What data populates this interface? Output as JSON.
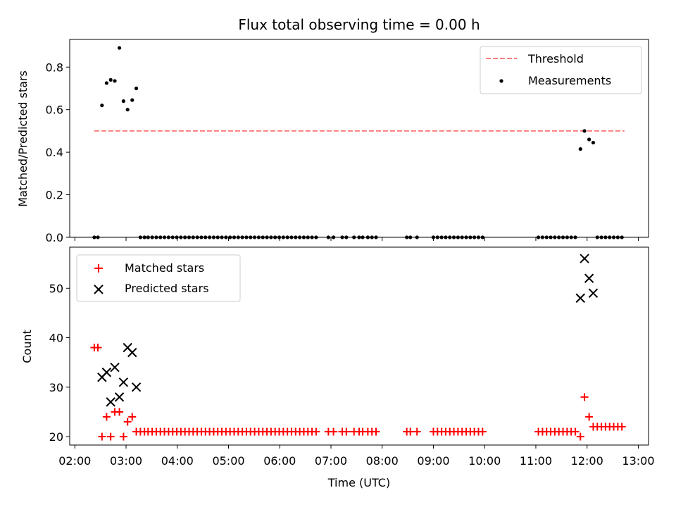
{
  "chart_data": {
    "title": "Flux total observing time = 0.00 h",
    "xlabel": "Time (UTC)",
    "x_tick_labels": [
      "02:00",
      "03:00",
      "04:00",
      "05:00",
      "06:00",
      "07:00",
      "08:00",
      "09:00",
      "10:00",
      "11:00",
      "12:00",
      "13:00"
    ],
    "x_tick_hours": [
      2,
      3,
      4,
      5,
      6,
      7,
      8,
      9,
      10,
      11,
      12,
      13
    ],
    "xlim_hours": [
      1.9,
      13.2
    ],
    "panels": [
      {
        "type": "scatter",
        "ylabel": "Matched/Predicted stars",
        "ylim": [
          0,
          0.93
        ],
        "y_ticks": [
          0.0,
          0.2,
          0.4,
          0.6,
          0.8
        ],
        "y_tick_labels": [
          "0.0",
          "0.2",
          "0.4",
          "0.6",
          "0.8"
        ],
        "legend_position": "upper right",
        "threshold": {
          "name": "Threshold",
          "value": 0.5,
          "x_range_hours": [
            2.38,
            12.73
          ],
          "color": "#ff7f7f"
        },
        "series": [
          {
            "name": "Measurements",
            "color": "#000000",
            "x_hours": [
              2.38,
              2.45,
              2.53,
              2.62,
              2.7,
              2.78,
              2.87,
              2.95,
              3.03,
              3.12,
              3.2,
              3.28,
              3.36,
              3.43,
              3.51,
              3.59,
              3.67,
              3.75,
              3.83,
              3.91,
              3.99,
              4.07,
              4.15,
              4.23,
              4.31,
              4.39,
              4.47,
              4.55,
              4.63,
              4.71,
              4.79,
              4.87,
              4.95,
              5.03,
              5.11,
              5.19,
              5.27,
              5.35,
              5.43,
              5.51,
              5.59,
              5.67,
              5.75,
              5.83,
              5.91,
              5.99,
              6.07,
              6.15,
              6.23,
              6.31,
              6.39,
              6.47,
              6.55,
              6.63,
              6.71,
              6.95,
              7.05,
              7.22,
              7.3,
              7.45,
              7.55,
              7.62,
              7.72,
              7.8,
              7.88,
              8.48,
              8.55,
              8.68,
              9.0,
              9.08,
              9.16,
              9.24,
              9.32,
              9.4,
              9.48,
              9.56,
              9.64,
              9.72,
              9.8,
              9.88,
              9.96,
              11.05,
              11.13,
              11.21,
              11.29,
              11.37,
              11.45,
              11.53,
              11.61,
              11.69,
              11.77,
              11.87,
              11.95,
              12.04,
              12.12,
              12.2,
              12.28,
              12.36,
              12.44,
              12.52,
              12.6,
              12.68
            ],
            "y": [
              0,
              0,
              0.62,
              0.725,
              0.74,
              0.735,
              0.89,
              0.64,
              0.6,
              0.645,
              0.7,
              0,
              0,
              0,
              0,
              0,
              0,
              0,
              0,
              0,
              0,
              0,
              0,
              0,
              0,
              0,
              0,
              0,
              0,
              0,
              0,
              0,
              0,
              0,
              0,
              0,
              0,
              0,
              0,
              0,
              0,
              0,
              0,
              0,
              0,
              0,
              0,
              0,
              0,
              0,
              0,
              0,
              0,
              0,
              0,
              0,
              0,
              0,
              0,
              0,
              0,
              0,
              0,
              0,
              0,
              0,
              0,
              0,
              0,
              0,
              0,
              0,
              0,
              0,
              0,
              0,
              0,
              0,
              0,
              0,
              0,
              0,
              0,
              0,
              0,
              0,
              0,
              0,
              0,
              0,
              0,
              0.415,
              0.5,
              0.46,
              0.445,
              0,
              0,
              0,
              0,
              0,
              0,
              0
            ]
          }
        ]
      },
      {
        "type": "scatter",
        "ylabel": "Count",
        "ylim": [
          18.3,
          58.3
        ],
        "y_ticks": [
          20,
          30,
          40,
          50
        ],
        "y_tick_labels": [
          "20",
          "30",
          "40",
          "50"
        ],
        "legend_position": "upper left",
        "series": [
          {
            "name": "Matched stars",
            "marker": "+",
            "color": "#ff0000",
            "x_hours": [
              2.38,
              2.45,
              2.53,
              2.62,
              2.7,
              2.78,
              2.87,
              2.95,
              3.03,
              3.12,
              3.2,
              3.28,
              3.36,
              3.43,
              3.51,
              3.59,
              3.67,
              3.75,
              3.83,
              3.91,
              3.99,
              4.07,
              4.15,
              4.23,
              4.31,
              4.39,
              4.47,
              4.55,
              4.63,
              4.71,
              4.79,
              4.87,
              4.95,
              5.03,
              5.11,
              5.19,
              5.27,
              5.35,
              5.43,
              5.51,
              5.59,
              5.67,
              5.75,
              5.83,
              5.91,
              5.99,
              6.07,
              6.15,
              6.23,
              6.31,
              6.39,
              6.47,
              6.55,
              6.63,
              6.71,
              6.95,
              7.05,
              7.22,
              7.3,
              7.45,
              7.55,
              7.62,
              7.72,
              7.8,
              7.88,
              8.48,
              8.55,
              8.68,
              9.0,
              9.08,
              9.16,
              9.24,
              9.32,
              9.4,
              9.48,
              9.56,
              9.64,
              9.72,
              9.8,
              9.88,
              9.96,
              11.05,
              11.13,
              11.21,
              11.29,
              11.37,
              11.45,
              11.53,
              11.61,
              11.69,
              11.77,
              11.87,
              11.95,
              12.04,
              12.12,
              12.2,
              12.28,
              12.36,
              12.44,
              12.52,
              12.6,
              12.68
            ],
            "y": [
              38,
              38,
              20,
              24,
              20,
              25,
              25,
              20,
              23,
              24,
              21,
              21,
              21,
              21,
              21,
              21,
              21,
              21,
              21,
              21,
              21,
              21,
              21,
              21,
              21,
              21,
              21,
              21,
              21,
              21,
              21,
              21,
              21,
              21,
              21,
              21,
              21,
              21,
              21,
              21,
              21,
              21,
              21,
              21,
              21,
              21,
              21,
              21,
              21,
              21,
              21,
              21,
              21,
              21,
              21,
              21,
              21,
              21,
              21,
              21,
              21,
              21,
              21,
              21,
              21,
              21,
              21,
              21,
              21,
              21,
              21,
              21,
              21,
              21,
              21,
              21,
              21,
              21,
              21,
              21,
              21,
              21,
              21,
              21,
              21,
              21,
              21,
              21,
              21,
              21,
              21,
              20,
              28,
              24,
              22,
              22,
              22,
              22,
              22,
              22,
              22,
              22
            ]
          },
          {
            "name": "Predicted stars",
            "marker": "x",
            "color": "#000000",
            "x_hours": [
              2.53,
              2.62,
              2.7,
              2.78,
              2.87,
              2.95,
              3.03,
              3.12,
              3.2,
              11.87,
              11.95,
              12.04,
              12.12
            ],
            "y": [
              32,
              33,
              27,
              34,
              28,
              31,
              38,
              37,
              30,
              48,
              56,
              52,
              49
            ]
          }
        ]
      }
    ]
  }
}
